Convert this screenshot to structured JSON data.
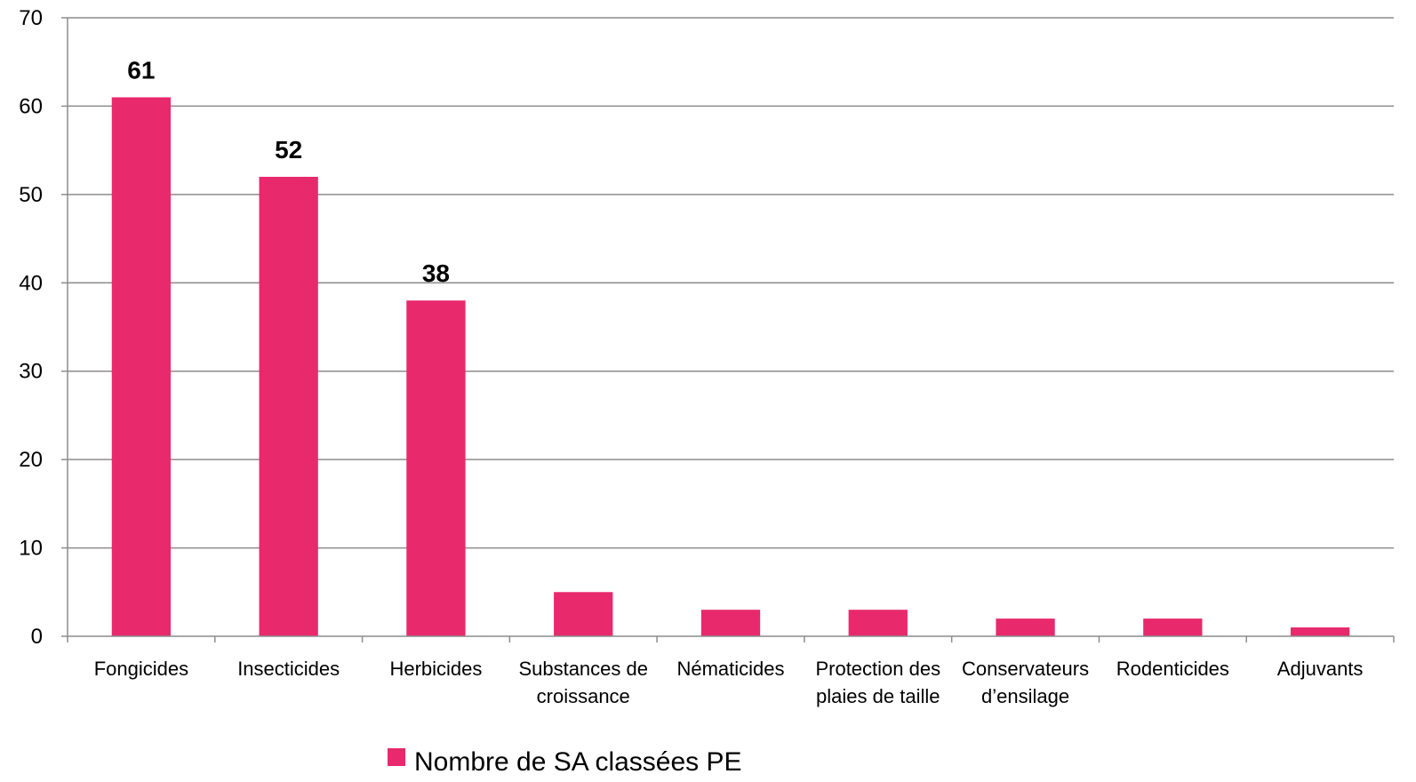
{
  "chart_data": {
    "type": "bar",
    "categories": [
      [
        "Fongicides"
      ],
      [
        "Insecticides"
      ],
      [
        "Herbicides"
      ],
      [
        "Substances de",
        "croissance"
      ],
      [
        "Nématicides"
      ],
      [
        "Protection des",
        "plaies de taille"
      ],
      [
        "Conservateurs",
        "d’ensilage"
      ],
      [
        "Rodenticides"
      ],
      [
        "Adjuvants"
      ]
    ],
    "series": [
      {
        "name": "Nombre de SA classées PE",
        "values": [
          61,
          52,
          38,
          5,
          3,
          3,
          2,
          2,
          1
        ],
        "color": "#e8296b"
      }
    ],
    "data_labels": [
      "61",
      "52",
      "38",
      null,
      null,
      null,
      null,
      null,
      null
    ],
    "ylim": [
      0,
      70
    ],
    "yticks": [
      0,
      10,
      20,
      30,
      40,
      50,
      60,
      70
    ],
    "grid": true,
    "legend_position": "bottom",
    "gridline_color": "#8c8c8c",
    "axis_color": "#8c8c8c"
  }
}
